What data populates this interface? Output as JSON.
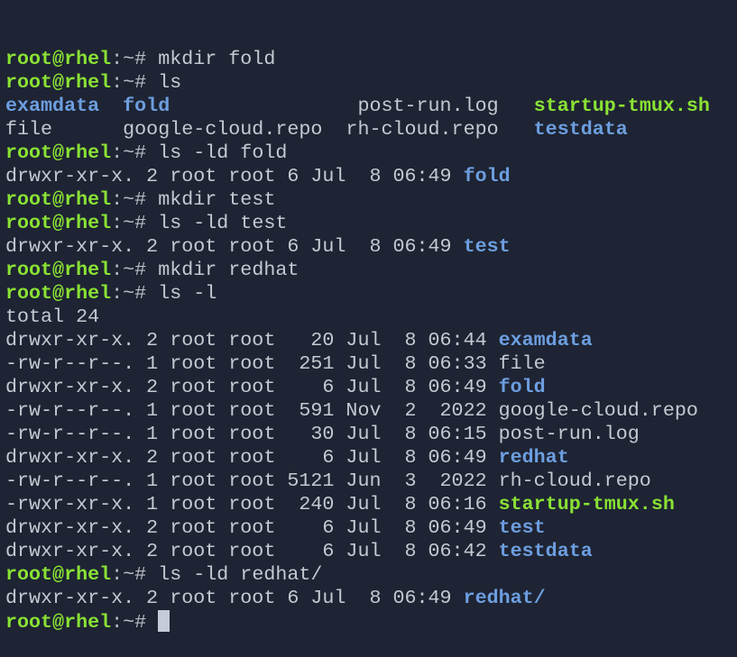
{
  "terminal": {
    "colors": {
      "background": "#1e2433",
      "prompt": "#8ae234",
      "directory": "#6d9ee0",
      "executable": "#8ae234",
      "text": "#c5c9d2"
    },
    "prompt_user": "root@rhel",
    "prompt_path": ":~# ",
    "lines": [
      [
        {
          "t": "root@rhel",
          "s": "prompt"
        },
        {
          "t": ":~# ",
          "s": "path"
        },
        {
          "t": "mkdir fold",
          "s": "cmd"
        }
      ],
      [
        {
          "t": "root@rhel",
          "s": "prompt"
        },
        {
          "t": ":~# ",
          "s": "path"
        },
        {
          "t": "ls",
          "s": "cmd"
        }
      ],
      [
        {
          "t": "examdata",
          "s": "dir"
        },
        {
          "t": "  ",
          "s": "plain"
        },
        {
          "t": "fold",
          "s": "dir"
        },
        {
          "t": "                ",
          "s": "plain"
        },
        {
          "t": "post-run.log",
          "s": "plain"
        },
        {
          "t": "   ",
          "s": "plain"
        },
        {
          "t": "startup-tmux.sh",
          "s": "exec"
        }
      ],
      [
        {
          "t": "file      google-cloud.repo  rh-cloud.repo   ",
          "s": "plain"
        },
        {
          "t": "testdata",
          "s": "dir"
        }
      ],
      [
        {
          "t": "root@rhel",
          "s": "prompt"
        },
        {
          "t": ":~# ",
          "s": "path"
        },
        {
          "t": "ls -ld fold",
          "s": "cmd"
        }
      ],
      [
        {
          "t": "drwxr-xr-x. 2 root root 6 Jul  8 06:49 ",
          "s": "plain"
        },
        {
          "t": "fold",
          "s": "dir"
        }
      ],
      [
        {
          "t": "root@rhel",
          "s": "prompt"
        },
        {
          "t": ":~# ",
          "s": "path"
        },
        {
          "t": "mkdir test",
          "s": "cmd"
        }
      ],
      [
        {
          "t": "root@rhel",
          "s": "prompt"
        },
        {
          "t": ":~# ",
          "s": "path"
        },
        {
          "t": "ls -ld test",
          "s": "cmd"
        }
      ],
      [
        {
          "t": "drwxr-xr-x. 2 root root 6 Jul  8 06:49 ",
          "s": "plain"
        },
        {
          "t": "test",
          "s": "dir"
        }
      ],
      [
        {
          "t": "root@rhel",
          "s": "prompt"
        },
        {
          "t": ":~# ",
          "s": "path"
        },
        {
          "t": "mkdir redhat",
          "s": "cmd"
        }
      ],
      [
        {
          "t": "root@rhel",
          "s": "prompt"
        },
        {
          "t": ":~# ",
          "s": "path"
        },
        {
          "t": "ls -l",
          "s": "cmd"
        }
      ],
      [
        {
          "t": "total 24",
          "s": "plain"
        }
      ],
      [
        {
          "t": "drwxr-xr-x. 2 root root   20 Jul  8 06:44 ",
          "s": "plain"
        },
        {
          "t": "examdata",
          "s": "dir"
        }
      ],
      [
        {
          "t": "-rw-r--r--. 1 root root  251 Jul  8 06:33 file",
          "s": "plain"
        }
      ],
      [
        {
          "t": "drwxr-xr-x. 2 root root    6 Jul  8 06:49 ",
          "s": "plain"
        },
        {
          "t": "fold",
          "s": "dir"
        }
      ],
      [
        {
          "t": "-rw-r--r--. 1 root root  591 Nov  2  2022 google-cloud.repo",
          "s": "plain"
        }
      ],
      [
        {
          "t": "-rw-r--r--. 1 root root   30 Jul  8 06:15 post-run.log",
          "s": "plain"
        }
      ],
      [
        {
          "t": "drwxr-xr-x. 2 root root    6 Jul  8 06:49 ",
          "s": "plain"
        },
        {
          "t": "redhat",
          "s": "dir"
        }
      ],
      [
        {
          "t": "-rw-r--r--. 1 root root 5121 Jun  3  2022 rh-cloud.repo",
          "s": "plain"
        }
      ],
      [
        {
          "t": "-rwxr-xr-x. 1 root root  240 Jul  8 06:16 ",
          "s": "plain"
        },
        {
          "t": "startup-tmux.sh",
          "s": "exec"
        }
      ],
      [
        {
          "t": "drwxr-xr-x. 2 root root    6 Jul  8 06:49 ",
          "s": "plain"
        },
        {
          "t": "test",
          "s": "dir"
        }
      ],
      [
        {
          "t": "drwxr-xr-x. 2 root root    6 Jul  8 06:42 ",
          "s": "plain"
        },
        {
          "t": "testdata",
          "s": "dir"
        }
      ],
      [
        {
          "t": "root@rhel",
          "s": "prompt"
        },
        {
          "t": ":~# ",
          "s": "path"
        },
        {
          "t": "ls -ld redhat/",
          "s": "cmd"
        }
      ],
      [
        {
          "t": "drwxr-xr-x. 2 root root 6 Jul  8 06:49 ",
          "s": "plain"
        },
        {
          "t": "redhat/",
          "s": "dir"
        }
      ]
    ]
  }
}
